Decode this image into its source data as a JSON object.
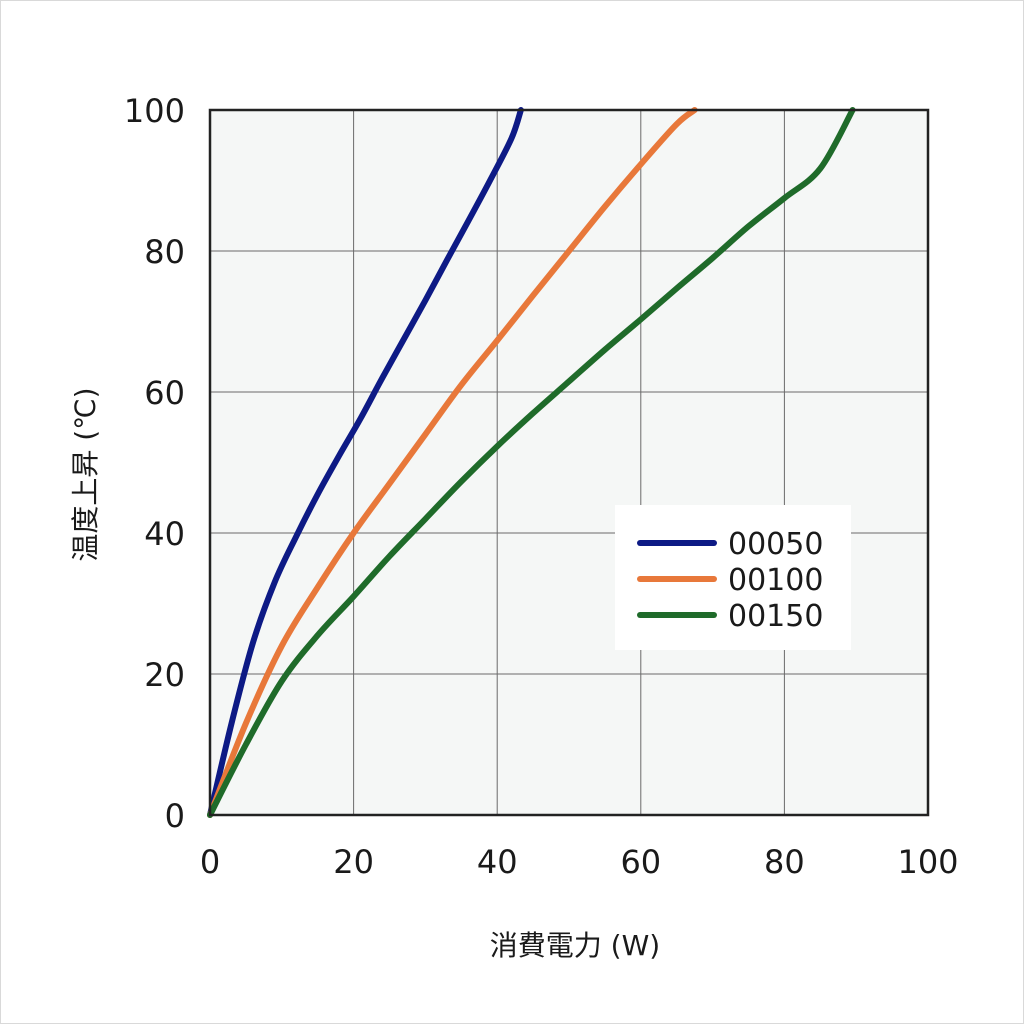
{
  "chart_data": {
    "type": "line",
    "title": "",
    "xlabel": "消費電力 (W)",
    "ylabel": "温度上昇 (℃)",
    "xlim": [
      0,
      100
    ],
    "ylim": [
      0,
      100
    ],
    "xticks": [
      0,
      20,
      40,
      60,
      80,
      100
    ],
    "yticks": [
      0,
      20,
      40,
      60,
      80,
      100
    ],
    "grid": true,
    "legend_position": "lower-right",
    "background_color": "#f5f7f6",
    "series": [
      {
        "name": "00050",
        "color": "#0d1a85",
        "x": [
          0,
          3,
          6,
          9,
          12,
          15,
          18,
          21,
          24,
          27,
          30,
          33,
          36,
          39,
          42,
          43.3
        ],
        "y": [
          0,
          13,
          24.5,
          33,
          39.5,
          45.5,
          51,
          56.3,
          62,
          67.5,
          73,
          78.7,
          84.3,
          90,
          96,
          100
        ]
      },
      {
        "name": "00100",
        "color": "#e8783a",
        "x": [
          0,
          5,
          10,
          15,
          20,
          25,
          30,
          35,
          40,
          45,
          50,
          55,
          60,
          65,
          67.5
        ],
        "y": [
          0,
          13,
          24,
          32.3,
          40,
          47,
          54,
          61,
          67.3,
          73.7,
          80,
          86.3,
          92.3,
          98,
          100
        ]
      },
      {
        "name": "00150",
        "color": "#1f6b2a",
        "x": [
          0,
          5,
          10,
          15,
          20,
          25,
          30,
          35,
          40,
          45,
          50,
          55,
          60,
          65,
          70,
          75,
          80,
          85,
          89.5
        ],
        "y": [
          0,
          10,
          19,
          25.5,
          31,
          36.7,
          42,
          47.3,
          52.3,
          57,
          61.5,
          66,
          70.3,
          74.7,
          79,
          83.5,
          87.5,
          91.7,
          100
        ]
      }
    ]
  }
}
